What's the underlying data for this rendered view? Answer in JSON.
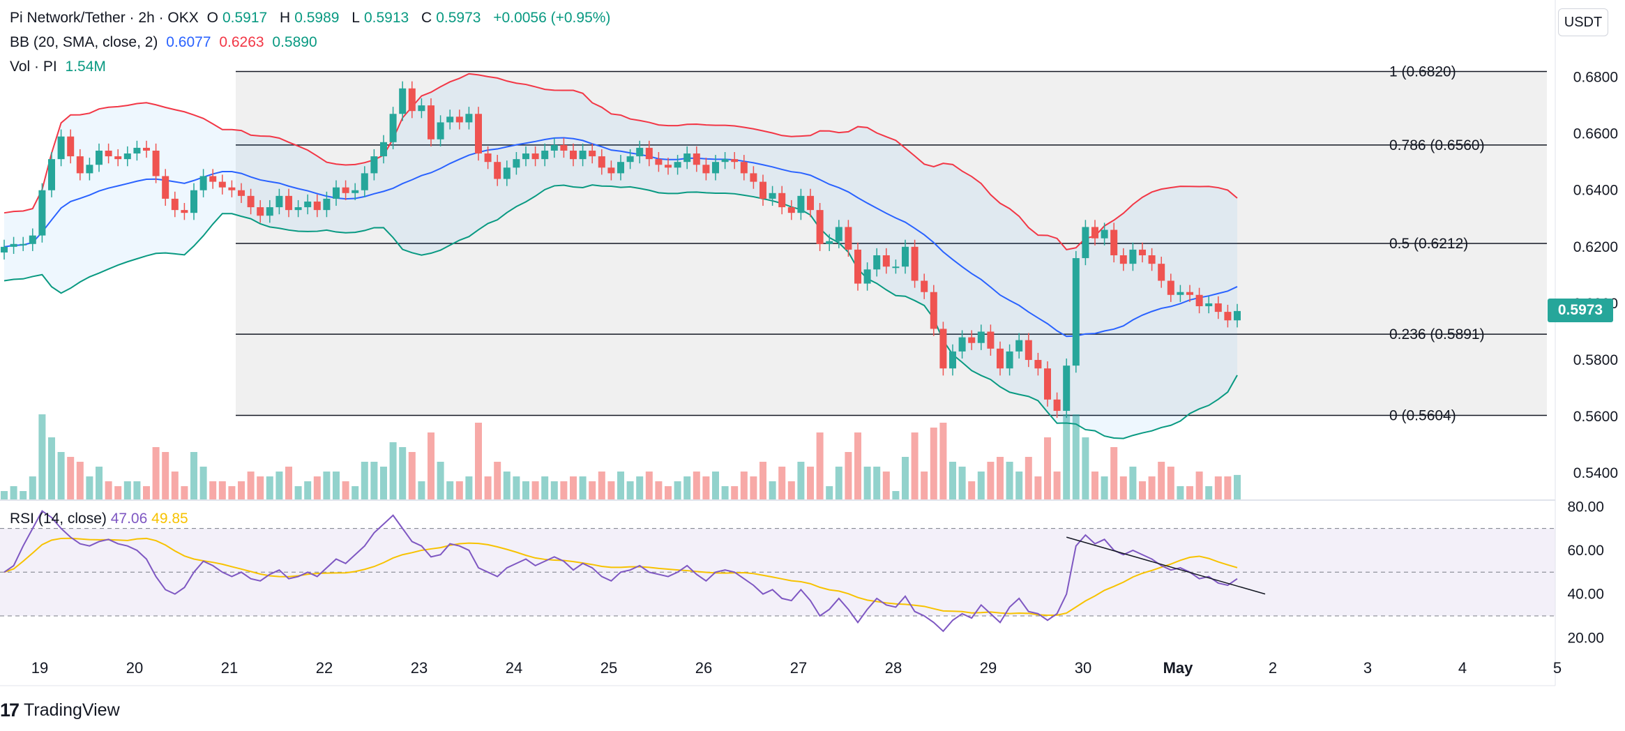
{
  "header": {
    "symbol": "Pi Network/Tether · 2h · OKX",
    "o_label": "O",
    "o": "0.5917",
    "h_label": "H",
    "h": "0.5989",
    "l_label": "L",
    "l": "0.5913",
    "c_label": "C",
    "c": "0.5973",
    "change": "+0.0056 (+0.95%)",
    "bb_label": "BB (20, SMA, close, 2)",
    "bb_mid": "0.6077",
    "bb_upper": "0.6263",
    "bb_lower": "0.5890",
    "vol_label": "Vol · PI",
    "vol": "1.54M",
    "rsi_label": "RSI (14, close)",
    "rsi": "47.06",
    "rsi_ma": "49.85"
  },
  "currency_button": "USDT",
  "last_price": "0.5973",
  "brand": {
    "mark": "17",
    "name": "TradingView"
  },
  "colors": {
    "up": "#26a69a",
    "down": "#ef5350",
    "bb_upper": "#f23645",
    "bb_lower": "#089981",
    "bb_mid": "#2962ff",
    "rsi": "#7e57c2",
    "rsi_ma": "#f7c200"
  },
  "chart_data": {
    "type": "candlestick",
    "price_axis": {
      "ylim": [
        0.526,
        0.69
      ],
      "ticks": [
        "0.6800",
        "0.6600",
        "0.6400",
        "0.6200",
        "0.6000",
        "0.5800",
        "0.5600",
        "0.5400"
      ]
    },
    "rsi_axis": {
      "ylim": [
        15,
        82
      ],
      "ticks": [
        "80.00",
        "60.00",
        "40.00",
        "20.00"
      ],
      "bands": [
        70,
        50,
        30
      ]
    },
    "x_axis": {
      "ticks": [
        "19",
        "20",
        "21",
        "22",
        "23",
        "24",
        "25",
        "26",
        "27",
        "28",
        "29",
        "30",
        "May",
        "2",
        "3",
        "4",
        "5"
      ]
    },
    "fib": [
      {
        "label": "1 (0.6820)",
        "value": 0.682
      },
      {
        "label": "0.786 (0.6560)",
        "value": 0.656
      },
      {
        "label": "0.5 (0.6212)",
        "value": 0.6212
      },
      {
        "label": "0.236 (0.5891)",
        "value": 0.5891
      },
      {
        "label": "0 (0.5604)",
        "value": 0.5604
      }
    ],
    "close": [
      0.62,
      0.621,
      0.621,
      0.624,
      0.64,
      0.651,
      0.659,
      0.652,
      0.646,
      0.649,
      0.654,
      0.652,
      0.651,
      0.653,
      0.655,
      0.654,
      0.645,
      0.637,
      0.633,
      0.632,
      0.64,
      0.645,
      0.643,
      0.641,
      0.64,
      0.638,
      0.634,
      0.631,
      0.634,
      0.638,
      0.633,
      0.634,
      0.636,
      0.633,
      0.637,
      0.641,
      0.639,
      0.64,
      0.646,
      0.652,
      0.657,
      0.667,
      0.676,
      0.668,
      0.67,
      0.658,
      0.664,
      0.666,
      0.664,
      0.667,
      0.653,
      0.65,
      0.644,
      0.648,
      0.651,
      0.653,
      0.651,
      0.654,
      0.656,
      0.654,
      0.651,
      0.654,
      0.652,
      0.648,
      0.646,
      0.65,
      0.652,
      0.655,
      0.651,
      0.649,
      0.648,
      0.65,
      0.653,
      0.649,
      0.646,
      0.65,
      0.651,
      0.65,
      0.646,
      0.643,
      0.637,
      0.639,
      0.634,
      0.632,
      0.638,
      0.633,
      0.621,
      0.622,
      0.627,
      0.619,
      0.607,
      0.612,
      0.617,
      0.613,
      0.613,
      0.62,
      0.608,
      0.604,
      0.591,
      0.577,
      0.583,
      0.588,
      0.586,
      0.59,
      0.584,
      0.577,
      0.583,
      0.587,
      0.58,
      0.577,
      0.566,
      0.562,
      0.578,
      0.616,
      0.627,
      0.623,
      0.626,
      0.617,
      0.614,
      0.619,
      0.617,
      0.614,
      0.608,
      0.603,
      0.604,
      0.603,
      0.599,
      0.6,
      0.597,
      0.594,
      0.5973
    ],
    "rsi": [
      50,
      53,
      62,
      70,
      78,
      75,
      70,
      66,
      63,
      62,
      64,
      65,
      63,
      62,
      60,
      56,
      48,
      42,
      40,
      43,
      50,
      55,
      53,
      50,
      48,
      50,
      47,
      46,
      49,
      51,
      47,
      48,
      50,
      48,
      52,
      56,
      54,
      58,
      62,
      68,
      72,
      76,
      70,
      64,
      62,
      57,
      58,
      63,
      62,
      60,
      52,
      50,
      48,
      52,
      54,
      56,
      53,
      55,
      57,
      55,
      51,
      54,
      52,
      48,
      46,
      50,
      51,
      53,
      50,
      49,
      48,
      50,
      53,
      49,
      46,
      50,
      51,
      50,
      47,
      44,
      40,
      42,
      38,
      37,
      42,
      37,
      30,
      33,
      38,
      33,
      27,
      33,
      38,
      35,
      34,
      39,
      32,
      30,
      27,
      23,
      28,
      31,
      29,
      35,
      31,
      27,
      34,
      38,
      32,
      31,
      28,
      31,
      40,
      62,
      67,
      63,
      65,
      60,
      58,
      60,
      58,
      56,
      53,
      51,
      52,
      50,
      47,
      48,
      45,
      44,
      47
    ]
  }
}
